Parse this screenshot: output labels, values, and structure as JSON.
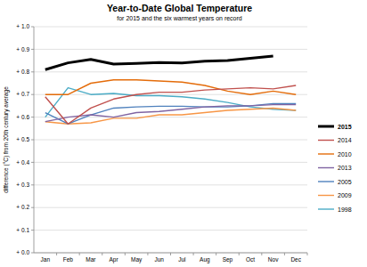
{
  "chart_data": {
    "type": "line",
    "title": "Year-to-Date Global Temperature",
    "subtitle": "for 2015 and the six warmest years on record",
    "y_label": "difference (°C) from 20th century average",
    "categories": [
      "Jan",
      "Feb",
      "Mar",
      "Apr",
      "May",
      "Jun",
      "Jul",
      "Aug",
      "Sep",
      "Oct",
      "Nov",
      "Dec"
    ],
    "series": [
      {
        "name": "2015",
        "color": "#000000",
        "values": [
          0.81,
          0.84,
          0.855,
          0.835,
          0.838,
          0.842,
          0.84,
          0.847,
          0.85,
          0.86,
          0.87,
          null
        ]
      },
      {
        "name": "2014",
        "color": "#c0504d",
        "values": [
          0.69,
          0.57,
          0.64,
          0.68,
          0.7,
          0.71,
          0.71,
          0.72,
          0.725,
          0.73,
          0.725,
          0.74
        ]
      },
      {
        "name": "2010",
        "color": "#e46c0a",
        "values": [
          0.7,
          0.7,
          0.75,
          0.765,
          0.765,
          0.76,
          0.755,
          0.74,
          0.715,
          0.7,
          0.715,
          0.7
        ]
      },
      {
        "name": "2013",
        "color": "#8064a2",
        "values": [
          0.58,
          0.6,
          0.61,
          0.6,
          0.62,
          0.625,
          0.635,
          0.645,
          0.65,
          0.65,
          0.655,
          0.655
        ]
      },
      {
        "name": "2005",
        "color": "#4f81bd",
        "values": [
          0.62,
          0.57,
          0.61,
          0.64,
          0.645,
          0.648,
          0.648,
          0.645,
          0.645,
          0.65,
          0.66,
          0.66
        ]
      },
      {
        "name": "2009",
        "color": "#f79646",
        "values": [
          0.58,
          0.57,
          0.575,
          0.595,
          0.595,
          0.61,
          0.61,
          0.62,
          0.63,
          0.635,
          0.64,
          0.63
        ]
      },
      {
        "name": "1998",
        "color": "#4bacc6",
        "values": [
          0.6,
          0.73,
          0.7,
          0.705,
          0.695,
          0.695,
          0.69,
          0.68,
          0.665,
          0.645,
          0.635,
          0.63
        ]
      }
    ],
    "ylim": [
      0,
      1
    ],
    "yticks": [
      {
        "value": 0,
        "label": "+ 0.0"
      },
      {
        "value": 0.1,
        "label": "+ 0.1"
      },
      {
        "value": 0.2,
        "label": "+ 0.2"
      },
      {
        "value": 0.3,
        "label": "+ 0.3"
      },
      {
        "value": 0.4,
        "label": "+ 0.4"
      },
      {
        "value": 0.5,
        "label": "+ 0.5"
      },
      {
        "value": 0.6,
        "label": "+ 0.6"
      },
      {
        "value": 0.7,
        "label": "+ 0.7"
      },
      {
        "value": 0.8,
        "label": "+ 0.8"
      },
      {
        "value": 0.9,
        "label": "+ 0.9"
      },
      {
        "value": 1,
        "label": "+ 1.0"
      }
    ],
    "grid": true,
    "legend": "right"
  }
}
